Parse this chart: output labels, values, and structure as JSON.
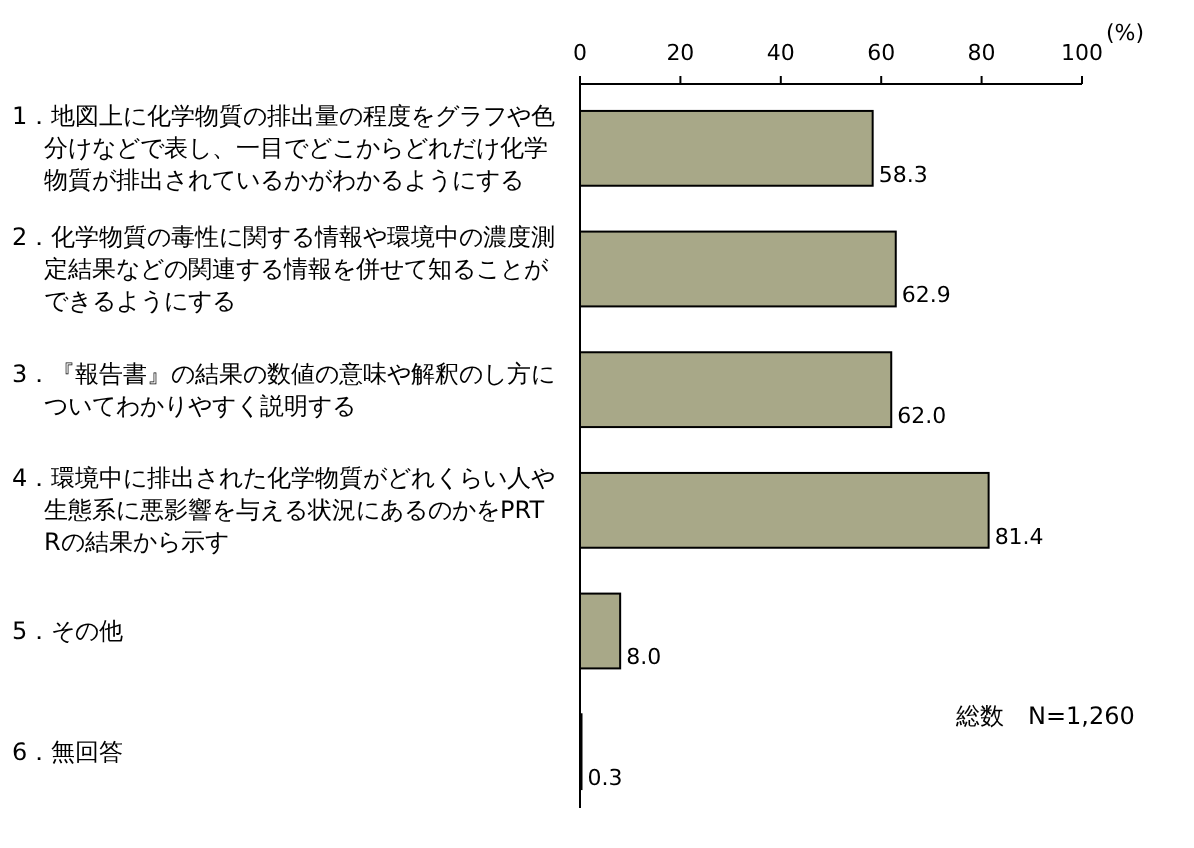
{
  "chart_data": {
    "type": "bar",
    "orientation": "horizontal",
    "xlabel": "(%)",
    "categories": [
      "1．地図上に化学物質の排出量の程度をグラフや色分けなどで表し、一目でどこからどれだけ化学物質が排出されているかがわかるようにする",
      "2．化学物質の毒性に関する情報や環境中の濃度測定結果などの関連する情報を併せて知ることができるようにする",
      "3．『報告書』の結果の数値の意味や解釈のし方についてわかりやすく説明する",
      "4．環境中に排出された化学物質がどれくらい人や生態系に悪影響を与える状況にあるのかをPRTRの結果から示す",
      "5．その他",
      "6．無回答"
    ],
    "values": [
      58.3,
      62.9,
      62.0,
      81.4,
      8.0,
      0.3
    ],
    "value_labels": [
      "58.3",
      "62.9",
      "62.0",
      "81.4",
      "8.0",
      "0.3"
    ],
    "color": "#a8a888",
    "xlim": [
      0,
      100
    ],
    "xticks": [
      0,
      20,
      40,
      60,
      80,
      100
    ],
    "annotations": [
      "総数　N=1,260"
    ]
  }
}
